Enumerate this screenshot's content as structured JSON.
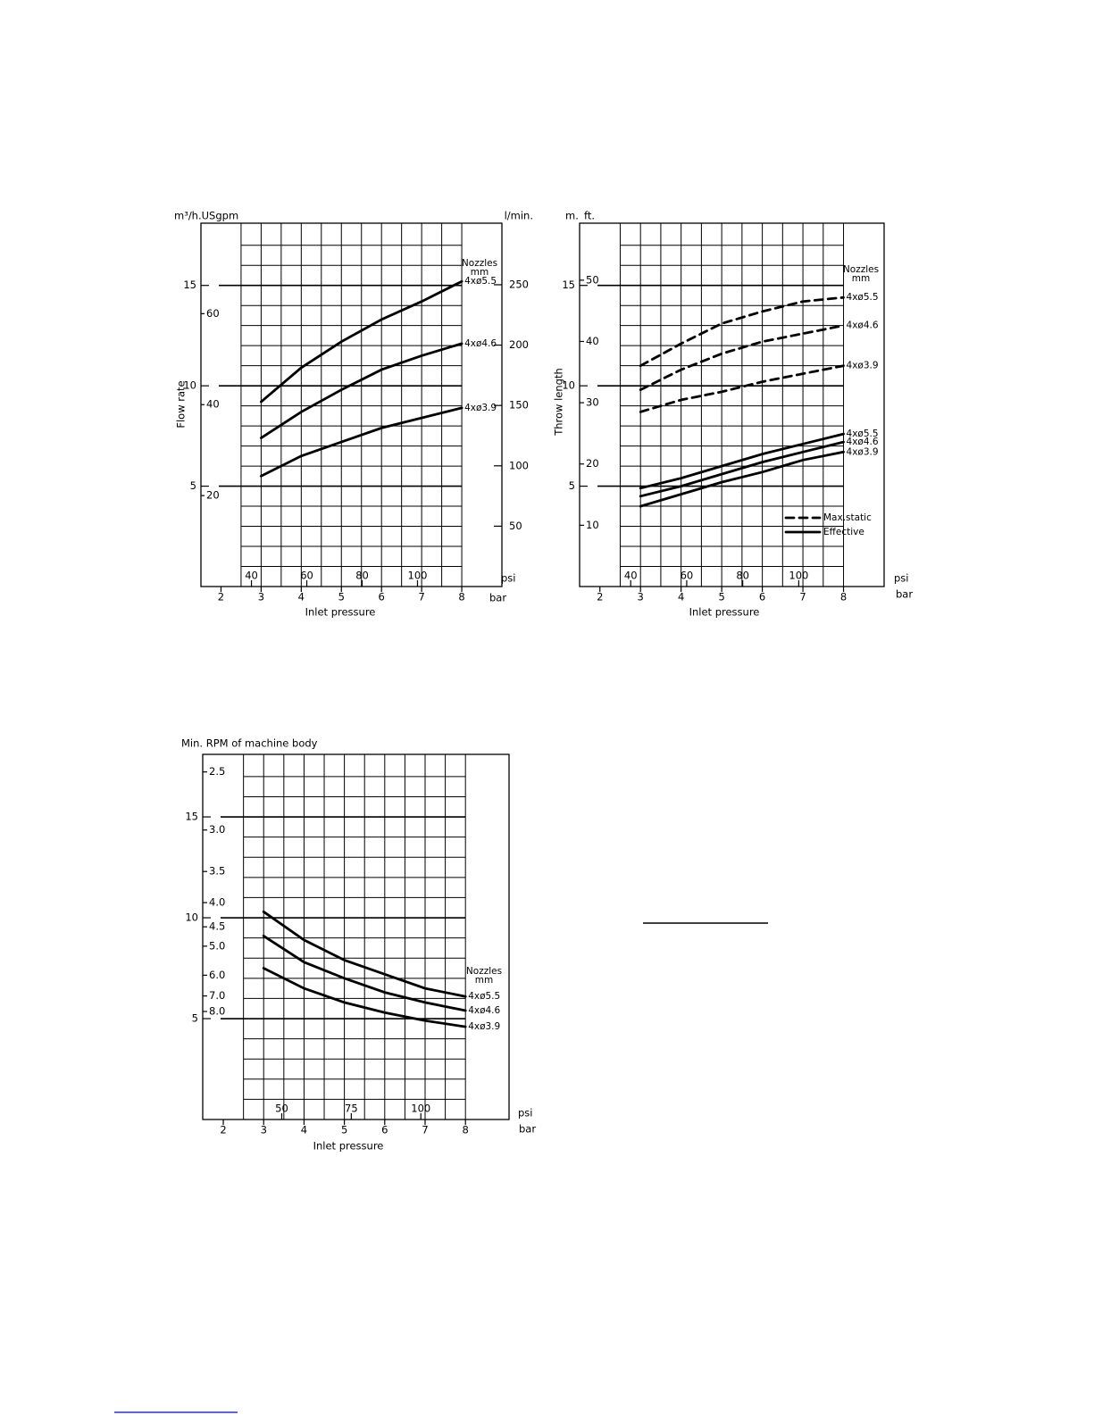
{
  "chart_data": [
    {
      "type": "line",
      "ylabel": "Flow rate",
      "yunit": "m³/h.USgpm",
      "y2unit": "l/min.",
      "xlabel": "Inlet pressure",
      "xunit": "bar",
      "x2unit": "psi",
      "legend_title": "Nozzles",
      "legend_subtitle": "mm",
      "x": [
        3,
        4,
        5,
        6,
        7,
        8
      ],
      "series": [
        {
          "name": "4xø5.5",
          "color": "#000000",
          "style": "solid",
          "values": [
            9.2,
            10.9,
            12.2,
            13.3,
            14.2,
            15.2
          ]
        },
        {
          "name": "4xø4.6",
          "color": "#000000",
          "style": "solid",
          "values": [
            7.4,
            8.7,
            9.8,
            10.8,
            11.5,
            12.1
          ]
        },
        {
          "name": "4xø3.9",
          "color": "#000000",
          "style": "solid",
          "values": [
            5.5,
            6.5,
            7.2,
            7.9,
            8.4,
            8.9
          ]
        }
      ],
      "xlim": [
        1.5,
        9
      ],
      "xticks": [
        2,
        3,
        4,
        5,
        6,
        7,
        8
      ],
      "x2lim": [
        21.75,
        130.5
      ],
      "x2ticks": [
        40,
        60,
        80,
        100
      ],
      "ylim": [
        0,
        18.1
      ],
      "yticks": [
        5,
        10,
        15
      ],
      "y2lim": [
        0,
        301
      ],
      "y2ticks": [
        50,
        100,
        150,
        200,
        250
      ],
      "y3lim": [
        0,
        79.9
      ],
      "y3ticks": [
        20,
        40,
        60
      ],
      "grid": true
    },
    {
      "type": "line",
      "ylabel": "Throw length",
      "yunit": "m.",
      "y2unit": "ft.",
      "xlabel": "Inlet pressure",
      "xunit": "bar",
      "x2unit": "psi",
      "legend_title": "Nozzles",
      "legend_subtitle": "mm",
      "legend": [
        {
          "label": "Max.static",
          "style": "dashed"
        },
        {
          "label": "Effective",
          "style": "solid"
        }
      ],
      "legend_position": "lower right",
      "x": [
        3,
        4,
        5,
        6,
        7,
        8
      ],
      "series": [
        {
          "name": "4xø5.5",
          "color": "#000000",
          "style": "dashed",
          "values": [
            11.0,
            12.1,
            13.1,
            13.7,
            14.2,
            14.4
          ]
        },
        {
          "name": "4xø4.6",
          "color": "#000000",
          "style": "dashed",
          "values": [
            9.8,
            10.8,
            11.6,
            12.2,
            12.6,
            13.0
          ]
        },
        {
          "name": "4xø3.9",
          "color": "#000000",
          "style": "dashed",
          "values": [
            8.7,
            9.3,
            9.7,
            10.2,
            10.6,
            11.0
          ]
        },
        {
          "name": "4xø5.5",
          "color": "#000000",
          "style": "solid",
          "values": [
            4.9,
            5.4,
            6.0,
            6.6,
            7.1,
            7.6
          ]
        },
        {
          "name": "4xø4.6",
          "color": "#000000",
          "style": "solid",
          "values": [
            4.5,
            5.0,
            5.6,
            6.2,
            6.7,
            7.2
          ]
        },
        {
          "name": "4xø3.9",
          "color": "#000000",
          "style": "solid",
          "values": [
            4.0,
            4.6,
            5.2,
            5.7,
            6.3,
            6.7
          ]
        }
      ],
      "xlim": [
        1.5,
        9
      ],
      "xticks": [
        2,
        3,
        4,
        5,
        6,
        7,
        8
      ],
      "x2lim": [
        21.75,
        130.5
      ],
      "x2ticks": [
        40,
        60,
        80,
        100
      ],
      "ylim": [
        0,
        18.1
      ],
      "yticks": [
        5,
        10,
        15
      ],
      "y2lim": [
        0,
        59.3
      ],
      "y2ticks": [
        10,
        20,
        30,
        40,
        50
      ],
      "grid": true
    },
    {
      "type": "line",
      "title": "Min. RPM of machine body",
      "xlabel": "Inlet pressure",
      "xunit": "bar",
      "x2unit": "psi",
      "legend_title": "Nozzles",
      "legend_subtitle": "mm",
      "x": [
        3,
        4,
        5,
        6,
        7,
        8
      ],
      "series": [
        {
          "name": "4xø5.5",
          "color": "#000000",
          "style": "solid",
          "values": [
            10.3,
            8.9,
            7.9,
            7.2,
            6.5,
            6.1
          ]
        },
        {
          "name": "4xø4.6",
          "color": "#000000",
          "style": "solid",
          "values": [
            9.1,
            7.8,
            7.0,
            6.3,
            5.8,
            5.4
          ]
        },
        {
          "name": "4xø3.9",
          "color": "#000000",
          "style": "solid",
          "values": [
            7.5,
            6.5,
            5.8,
            5.3,
            4.9,
            4.6
          ]
        }
      ],
      "xlim": [
        1.49,
        9.08
      ],
      "xticks": [
        2,
        3,
        4,
        5,
        6,
        7,
        8
      ],
      "x2lim": [
        21.6,
        131.7
      ],
      "x2ticks": [
        50,
        75,
        100
      ],
      "ylim": [
        0,
        18.1
      ],
      "yticks": [
        5,
        10,
        15
      ],
      "y2scale": "reciprocal",
      "y2lim": [
        2.38,
        1000
      ],
      "y2ticks": [
        2.5,
        {
          "value": 3,
          "label": "3.0"
        },
        3.5,
        {
          "value": 4,
          "label": "4.0"
        },
        4.5,
        {
          "value": 5,
          "label": "5.0"
        },
        {
          "value": 6,
          "label": "6.0"
        },
        {
          "value": 7,
          "label": "7.0"
        },
        {
          "value": 8,
          "label": "8.0"
        }
      ],
      "grid": true
    }
  ]
}
